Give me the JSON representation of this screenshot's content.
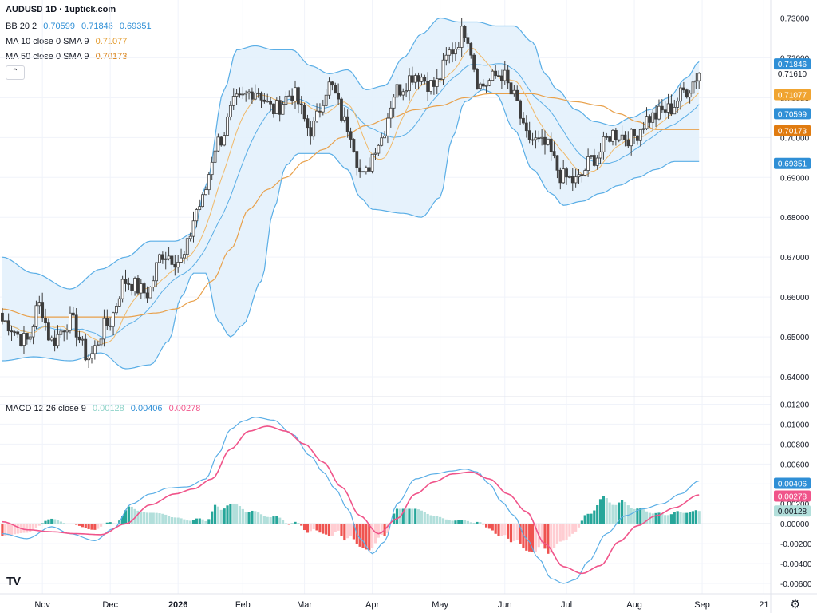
{
  "header": {
    "title": "AUDUSD 1D · 1uptick.com",
    "bb_label": "BB 20 2",
    "bb_values": [
      "0.70599",
      "0.71846",
      "0.69351"
    ],
    "ma10_label": "MA 10 close 0 SMA 9",
    "ma10_value": "0.71077",
    "ma50_label": "MA 50 close 0 SMA 9",
    "ma50_value": "0.70173",
    "macd_label": "MACD 12 26 close 9",
    "macd_values": [
      "0.00128",
      "0.00406",
      "0.00278"
    ]
  },
  "colors": {
    "bb_line": "#5aaee6",
    "bb_fill": "#e3f1fc",
    "ma10": "#f0b868",
    "ma50": "#e8a04a",
    "candle": "#3d3d3d",
    "macd_line": "#5aaee6",
    "signal_line": "#f0548a",
    "hist_pos_strong": "#26a69a",
    "hist_pos_weak": "#b2dfdb",
    "hist_neg_strong": "#ef5350",
    "hist_neg_weak": "#ffcdd2"
  },
  "icons": {
    "collapse": "chevron-up-icon",
    "logo": "tradingview-logo-icon",
    "settings": "gear-icon"
  },
  "icon_glyphs": {
    "collapse": "⌃",
    "logo": "TV",
    "settings": "⚙"
  },
  "chart_data": [
    {
      "type": "candlestick",
      "title": "AUDUSD 1D",
      "x_labels": [
        "Nov",
        "Dec",
        "2026",
        "Feb",
        "Mar",
        "Apr",
        "May",
        "Jun",
        "Jul",
        "Aug",
        "Sep",
        "21"
      ],
      "x_label_index": [
        13,
        35,
        57,
        78,
        98,
        120,
        142,
        163,
        183,
        205,
        227,
        247
      ],
      "ylim": [
        0.636,
        0.7335
      ],
      "y_ticks": [
        "0.73000",
        "0.72000",
        "0.71000",
        "0.70000",
        "0.69000",
        "0.68000",
        "0.67000",
        "0.66000",
        "0.65000",
        "0.64000"
      ],
      "y_tick_values": [
        0.73,
        0.72,
        0.71,
        0.7,
        0.69,
        0.68,
        0.67,
        0.66,
        0.65,
        0.64
      ],
      "last_price": "0.71610",
      "last_price_value": 0.7161,
      "price_tags": [
        {
          "text": "0.71846",
          "value": 0.71846,
          "kind": "bb"
        },
        {
          "text": "0.71077",
          "value": 0.71077,
          "kind": "ma10"
        },
        {
          "text": "0.70599",
          "value": 0.70599,
          "kind": "bb"
        },
        {
          "text": "0.70173",
          "value": 0.70173,
          "kind": "ma50"
        },
        {
          "text": "0.69351",
          "value": 0.69351,
          "kind": "bb"
        }
      ],
      "close_anchors": [
        [
          0,
          0.654
        ],
        [
          8,
          0.649
        ],
        [
          12,
          0.658
        ],
        [
          16,
          0.649
        ],
        [
          22,
          0.654
        ],
        [
          28,
          0.645
        ],
        [
          34,
          0.653
        ],
        [
          40,
          0.664
        ],
        [
          47,
          0.661
        ],
        [
          52,
          0.671
        ],
        [
          58,
          0.669
        ],
        [
          64,
          0.683
        ],
        [
          70,
          0.699
        ],
        [
          76,
          0.709
        ],
        [
          82,
          0.712
        ],
        [
          88,
          0.707
        ],
        [
          94,
          0.711
        ],
        [
          100,
          0.702
        ],
        [
          106,
          0.713
        ],
        [
          112,
          0.703
        ],
        [
          117,
          0.69
        ],
        [
          122,
          0.699
        ],
        [
          128,
          0.712
        ],
        [
          134,
          0.716
        ],
        [
          140,
          0.713
        ],
        [
          146,
          0.722
        ],
        [
          150,
          0.727
        ],
        [
          155,
          0.713
        ],
        [
          162,
          0.716
        ],
        [
          166,
          0.71
        ],
        [
          170,
          0.7
        ],
        [
          176,
          0.698
        ],
        [
          182,
          0.69
        ],
        [
          186,
          0.689
        ],
        [
          192,
          0.695
        ],
        [
          198,
          0.701
        ],
        [
          204,
          0.7
        ],
        [
          210,
          0.705
        ],
        [
          216,
          0.707
        ],
        [
          222,
          0.712
        ],
        [
          226,
          0.716
        ]
      ],
      "upper_band_anchors": [
        [
          0,
          0.67
        ],
        [
          10,
          0.666
        ],
        [
          22,
          0.662
        ],
        [
          32,
          0.667
        ],
        [
          40,
          0.67
        ],
        [
          48,
          0.674
        ],
        [
          56,
          0.674
        ],
        [
          62,
          0.676
        ],
        [
          66,
          0.688
        ],
        [
          72,
          0.712
        ],
        [
          76,
          0.722
        ],
        [
          82,
          0.723
        ],
        [
          88,
          0.722
        ],
        [
          94,
          0.722
        ],
        [
          100,
          0.718
        ],
        [
          106,
          0.716
        ],
        [
          112,
          0.717
        ],
        [
          118,
          0.712
        ],
        [
          124,
          0.713
        ],
        [
          130,
          0.72
        ],
        [
          136,
          0.726
        ],
        [
          142,
          0.73
        ],
        [
          148,
          0.729
        ],
        [
          154,
          0.729
        ],
        [
          160,
          0.728
        ],
        [
          166,
          0.728
        ],
        [
          172,
          0.724
        ],
        [
          176,
          0.716
        ],
        [
          180,
          0.712
        ],
        [
          186,
          0.707
        ],
        [
          192,
          0.704
        ],
        [
          198,
          0.703
        ],
        [
          204,
          0.705
        ],
        [
          210,
          0.707
        ],
        [
          216,
          0.71
        ],
        [
          222,
          0.715
        ],
        [
          226,
          0.719
        ]
      ],
      "lower_band_anchors": [
        [
          0,
          0.644
        ],
        [
          10,
          0.645
        ],
        [
          22,
          0.644
        ],
        [
          32,
          0.646
        ],
        [
          40,
          0.642
        ],
        [
          48,
          0.643
        ],
        [
          54,
          0.649
        ],
        [
          58,
          0.66
        ],
        [
          62,
          0.666
        ],
        [
          66,
          0.666
        ],
        [
          70,
          0.654
        ],
        [
          74,
          0.65
        ],
        [
          78,
          0.653
        ],
        [
          84,
          0.664
        ],
        [
          88,
          0.682
        ],
        [
          92,
          0.693
        ],
        [
          96,
          0.696
        ],
        [
          100,
          0.696
        ],
        [
          106,
          0.696
        ],
        [
          112,
          0.692
        ],
        [
          116,
          0.685
        ],
        [
          120,
          0.682
        ],
        [
          130,
          0.681
        ],
        [
          136,
          0.68
        ],
        [
          142,
          0.685
        ],
        [
          146,
          0.7
        ],
        [
          150,
          0.709
        ],
        [
          156,
          0.712
        ],
        [
          160,
          0.711
        ],
        [
          166,
          0.702
        ],
        [
          172,
          0.692
        ],
        [
          178,
          0.686
        ],
        [
          182,
          0.683
        ],
        [
          188,
          0.684
        ],
        [
          194,
          0.686
        ],
        [
          200,
          0.688
        ],
        [
          206,
          0.69
        ],
        [
          212,
          0.692
        ],
        [
          218,
          0.694
        ],
        [
          222,
          0.694
        ],
        [
          226,
          0.694
        ]
      ],
      "ma50_anchors": [
        [
          0,
          0.657
        ],
        [
          10,
          0.655
        ],
        [
          20,
          0.655
        ],
        [
          30,
          0.655
        ],
        [
          40,
          0.655
        ],
        [
          50,
          0.656
        ],
        [
          56,
          0.657
        ],
        [
          62,
          0.659
        ],
        [
          68,
          0.664
        ],
        [
          74,
          0.672
        ],
        [
          80,
          0.682
        ],
        [
          86,
          0.687
        ],
        [
          92,
          0.69
        ],
        [
          98,
          0.694
        ],
        [
          104,
          0.697
        ],
        [
          110,
          0.7
        ],
        [
          118,
          0.703
        ],
        [
          126,
          0.705
        ],
        [
          134,
          0.707
        ],
        [
          142,
          0.708
        ],
        [
          150,
          0.71
        ],
        [
          158,
          0.711
        ],
        [
          166,
          0.711
        ],
        [
          172,
          0.711
        ],
        [
          178,
          0.71
        ],
        [
          186,
          0.709
        ],
        [
          194,
          0.708
        ],
        [
          200,
          0.706
        ],
        [
          206,
          0.704
        ],
        [
          212,
          0.702
        ],
        [
          218,
          0.702
        ],
        [
          226,
          0.702
        ]
      ]
    },
    {
      "type": "macd",
      "title": "MACD 12 26 close 9",
      "ylim": [
        -0.0068,
        0.0126
      ],
      "y_ticks": [
        "0.01200",
        "0.01000",
        "0.00800",
        "0.00600",
        "0.00400",
        "0.00200",
        "0.00000",
        "-0.00200",
        "-0.00400",
        "-0.00600"
      ],
      "y_tick_values": [
        0.012,
        0.01,
        0.008,
        0.006,
        0.004,
        0.002,
        0.0,
        -0.002,
        -0.004,
        -0.006
      ],
      "value_tags": [
        {
          "text": "0.00406",
          "value": 0.00406,
          "kind": "macd"
        },
        {
          "text": "0.00278",
          "value": 0.00278,
          "kind": "signal"
        },
        {
          "text": "0.00128",
          "value": 0.00128,
          "kind": "hist"
        }
      ],
      "macd_anchors": [
        [
          0,
          -0.001
        ],
        [
          8,
          -0.0015
        ],
        [
          16,
          -0.0003
        ],
        [
          22,
          -0.001
        ],
        [
          30,
          -0.0017
        ],
        [
          36,
          -0.0005
        ],
        [
          42,
          0.002
        ],
        [
          48,
          0.003
        ],
        [
          54,
          0.0036
        ],
        [
          60,
          0.0037
        ],
        [
          66,
          0.0045
        ],
        [
          70,
          0.007
        ],
        [
          74,
          0.0095
        ],
        [
          78,
          0.0103
        ],
        [
          82,
          0.0107
        ],
        [
          88,
          0.0104
        ],
        [
          94,
          0.009
        ],
        [
          100,
          0.0068
        ],
        [
          104,
          0.0052
        ],
        [
          108,
          0.0035
        ],
        [
          112,
          0.0015
        ],
        [
          116,
          -0.0015
        ],
        [
          120,
          -0.003
        ],
        [
          124,
          -0.0018
        ],
        [
          128,
          0.002
        ],
        [
          134,
          0.0045
        ],
        [
          140,
          0.005
        ],
        [
          146,
          0.0053
        ],
        [
          150,
          0.0055
        ],
        [
          154,
          0.0052
        ],
        [
          158,
          0.004
        ],
        [
          162,
          0.0022
        ],
        [
          166,
          0.0008
        ],
        [
          170,
          -0.0015
        ],
        [
          174,
          -0.0035
        ],
        [
          178,
          -0.0055
        ],
        [
          182,
          -0.006
        ],
        [
          186,
          -0.0056
        ],
        [
          190,
          -0.0038
        ],
        [
          196,
          -0.001
        ],
        [
          202,
          0.0008
        ],
        [
          208,
          0.0015
        ],
        [
          214,
          0.002
        ],
        [
          220,
          0.003
        ],
        [
          226,
          0.0043
        ]
      ],
      "signal_anchors": [
        [
          0,
          0.0002
        ],
        [
          8,
          -0.0006
        ],
        [
          16,
          -0.0008
        ],
        [
          24,
          -0.001
        ],
        [
          32,
          -0.0011
        ],
        [
          40,
          0.0
        ],
        [
          48,
          0.0019
        ],
        [
          56,
          0.003
        ],
        [
          62,
          0.0035
        ],
        [
          68,
          0.0045
        ],
        [
          74,
          0.0075
        ],
        [
          80,
          0.0093
        ],
        [
          86,
          0.0098
        ],
        [
          92,
          0.0093
        ],
        [
          98,
          0.008
        ],
        [
          104,
          0.0062
        ],
        [
          110,
          0.0037
        ],
        [
          116,
          0.0008
        ],
        [
          122,
          -0.001
        ],
        [
          128,
          0.0005
        ],
        [
          134,
          0.003
        ],
        [
          140,
          0.0042
        ],
        [
          146,
          0.005
        ],
        [
          152,
          0.0052
        ],
        [
          158,
          0.0045
        ],
        [
          164,
          0.003
        ],
        [
          170,
          0.0012
        ],
        [
          176,
          -0.002
        ],
        [
          182,
          -0.0043
        ],
        [
          188,
          -0.005
        ],
        [
          194,
          -0.0042
        ],
        [
          200,
          -0.0018
        ],
        [
          206,
          -0.0002
        ],
        [
          212,
          0.0008
        ],
        [
          218,
          0.0016
        ],
        [
          226,
          0.0029
        ]
      ]
    }
  ]
}
